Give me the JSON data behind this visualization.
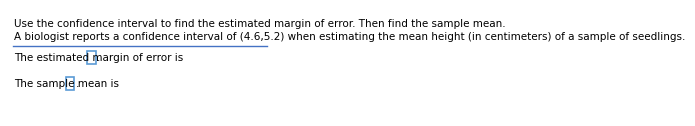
{
  "title_line": "Use the confidence interval to find the estimated margin of error. Then find the sample mean.",
  "body_line": "A biologist reports a confidence interval of (4.6,5.2) when estimating the mean height (in centimeters) of a sample of seedlings.",
  "answer_line1": "The estimated margin of error is",
  "answer_line2": "The sample mean is",
  "dot": ".",
  "bg_color": "#ffffff",
  "title_fontsize": 7.5,
  "body_fontsize": 7.5,
  "answer_fontsize": 7.5,
  "box_color": "#5b9bd5",
  "separator_color": "#4472c4",
  "text_color": "#000000"
}
